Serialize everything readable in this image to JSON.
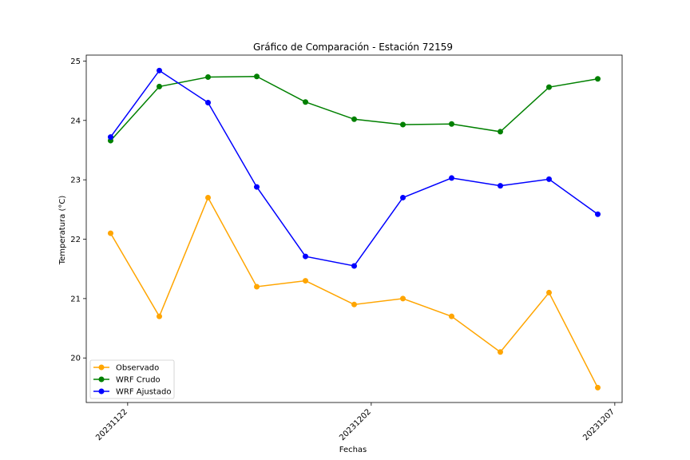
{
  "chart_data": {
    "type": "line",
    "title": "Gráfico de Comparación - Estación 72159",
    "xlabel": "Fechas",
    "ylabel": "Temperatura (°C)",
    "x_index": [
      0,
      1,
      2,
      3,
      4,
      5,
      6,
      7,
      8,
      9,
      10
    ],
    "x_tick_labels": [
      "20231122",
      "20231202",
      "20231207"
    ],
    "x_tick_positions": [
      0.35,
      5.35,
      10.35
    ],
    "xlim": [
      -0.5,
      10.5
    ],
    "ylim": [
      19.25,
      25.1
    ],
    "y_ticks": [
      20,
      21,
      22,
      23,
      24,
      25
    ],
    "grid": false,
    "legend_position": "lower-left",
    "series": [
      {
        "name": "Observado",
        "color": "#FFA500",
        "values": [
          22.1,
          20.7,
          22.7,
          21.2,
          21.3,
          20.9,
          21.0,
          20.7,
          20.1,
          21.1,
          19.5
        ]
      },
      {
        "name": "WRF Crudo",
        "color": "#008000",
        "values": [
          23.66,
          24.57,
          24.73,
          24.74,
          24.31,
          24.02,
          23.93,
          23.94,
          23.81,
          24.56,
          24.7
        ]
      },
      {
        "name": "WRF Ajustado",
        "color": "#0000FF",
        "values": [
          23.72,
          24.84,
          24.3,
          22.88,
          21.71,
          21.55,
          22.7,
          23.03,
          22.9,
          23.01,
          22.42
        ]
      }
    ]
  }
}
